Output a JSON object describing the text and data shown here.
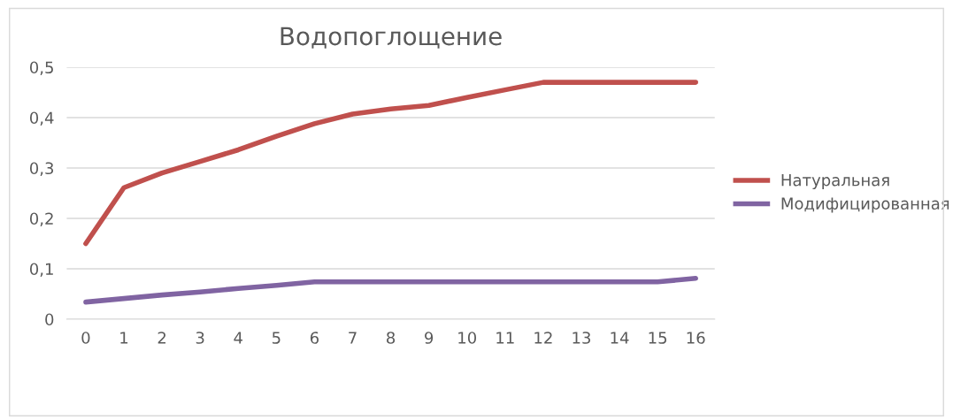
{
  "chart_data": {
    "type": "line",
    "title": "Водопоглощение",
    "categories": [
      "0",
      "1",
      "2",
      "3",
      "4",
      "5",
      "6",
      "7",
      "8",
      "9",
      "10",
      "11",
      "12",
      "13",
      "14",
      "15",
      "16"
    ],
    "series": [
      {
        "name": "Натуральная",
        "color": "#c0504d",
        "values": [
          0.15,
          0.261,
          0.29,
          0.313,
          0.336,
          0.363,
          0.388,
          0.407,
          0.417,
          0.424,
          0.44,
          0.455,
          0.47,
          0.47,
          0.47,
          0.47,
          0.47
        ]
      },
      {
        "name": "Модифицированная",
        "color": "#8064a2",
        "values": [
          0.034,
          0.041,
          0.048,
          0.054,
          0.061,
          0.067,
          0.074,
          0.074,
          0.074,
          0.074,
          0.074,
          0.074,
          0.074,
          0.074,
          0.074,
          0.074,
          0.081
        ]
      }
    ],
    "ylim": [
      0,
      0.5
    ],
    "yticks": [
      {
        "value": 0,
        "label": "0"
      },
      {
        "value": 0.1,
        "label": "0,1"
      },
      {
        "value": 0.2,
        "label": "0,2"
      },
      {
        "value": 0.3,
        "label": "0,3"
      },
      {
        "value": 0.4,
        "label": "0,4"
      },
      {
        "value": 0.5,
        "label": "0,5"
      }
    ],
    "grid": "y",
    "legend": "right",
    "marker": "none",
    "line_style": "solid"
  }
}
